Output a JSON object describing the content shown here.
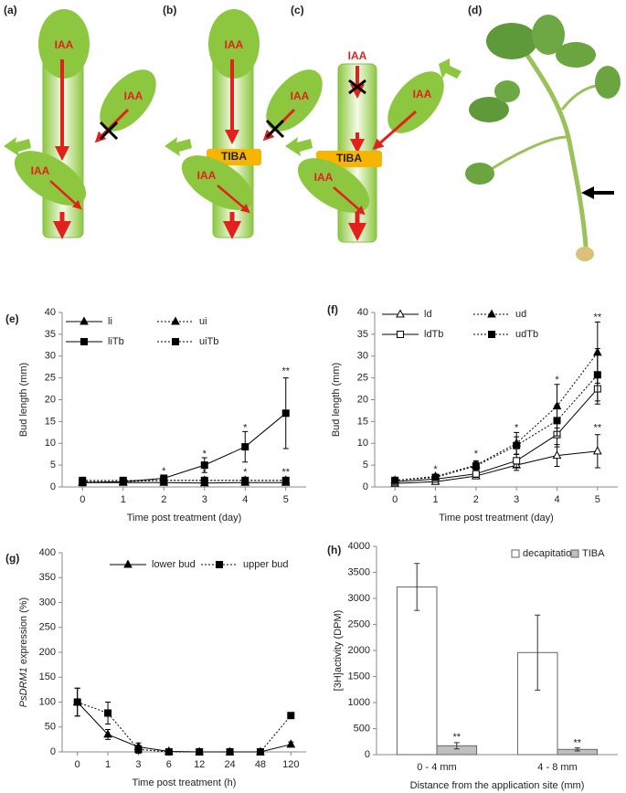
{
  "diagrams": {
    "labels": [
      "(a)",
      "(b)",
      "(c)",
      "(d)"
    ],
    "iaa": "IAA",
    "tiba": "TIBA"
  },
  "chart_data": [
    {
      "type": "line",
      "panel": "(e)",
      "ylabel": "Bud length (mm)",
      "xlabel": "Time post treatment (day)",
      "categories": [
        "0",
        "1",
        "2",
        "3",
        "4",
        "5"
      ],
      "ylim": [
        0,
        40
      ],
      "yticks": [
        0,
        5,
        10,
        15,
        20,
        25,
        30,
        35,
        40
      ],
      "series": [
        {
          "name": "li",
          "color": "#000000",
          "marker": "triangle",
          "open": false,
          "dash": "solid",
          "values": [
            1.0,
            1.0,
            1.0,
            0.9,
            1.0,
            1.0
          ]
        },
        {
          "name": "ui",
          "color": "#000000",
          "marker": "triangle",
          "open": false,
          "dash": "dotted",
          "values": [
            1.2,
            1.2,
            1.5,
            1.5,
            1.5,
            1.5
          ]
        },
        {
          "name": "liTb",
          "color": "#000000",
          "marker": "square",
          "open": false,
          "dash": "solid",
          "values": [
            1.0,
            1.2,
            2.0,
            5.0,
            9.2,
            16.9
          ],
          "errors": [
            0.3,
            0.4,
            0.6,
            1.7,
            3.5,
            8.1
          ]
        },
        {
          "name": "uiTb",
          "color": "#000000",
          "marker": "square",
          "open": false,
          "dash": "dotted",
          "values": [
            1.5,
            1.5,
            1.5,
            1.5,
            1.5,
            1.5
          ]
        }
      ],
      "annotations": [
        {
          "text": "*",
          "x": 2,
          "y": 3.5
        },
        {
          "text": "*",
          "x": 3,
          "y": 7.5
        },
        {
          "text": "*",
          "x": 4,
          "y": 13.5
        },
        {
          "text": "**",
          "x": 5,
          "y": 26.5
        },
        {
          "text": "*",
          "x": 3,
          "y": 3.3
        },
        {
          "text": "*",
          "x": 4,
          "y": 3.3
        },
        {
          "text": "**",
          "x": 5,
          "y": 3.3
        }
      ]
    },
    {
      "type": "line",
      "panel": "(f)",
      "ylabel": "Bud length (mm)",
      "xlabel": "Time post treatment (day)",
      "categories": [
        "0",
        "1",
        "2",
        "3",
        "4",
        "5"
      ],
      "ylim": [
        0,
        40
      ],
      "yticks": [
        0,
        5,
        10,
        15,
        20,
        25,
        30,
        35,
        40
      ],
      "series": [
        {
          "name": "ld",
          "color": "#000000",
          "marker": "triangle",
          "open": true,
          "dash": "solid",
          "values": [
            0.8,
            1.2,
            2.5,
            5.0,
            7.2,
            8.2
          ],
          "errors": [
            0.3,
            0.4,
            0.6,
            1.2,
            2.5,
            3.8
          ]
        },
        {
          "name": "ud",
          "color": "#000000",
          "marker": "triangle",
          "open": false,
          "dash": "dotted",
          "values": [
            1.5,
            2.4,
            5.0,
            10.0,
            18.5,
            30.8
          ],
          "errors": [
            0.5,
            0.5,
            1.0,
            2.5,
            5.0,
            7.0
          ]
        },
        {
          "name": "ldTb",
          "color": "#000000",
          "marker": "square",
          "open": true,
          "dash": "solid",
          "values": [
            1.2,
            1.8,
            3.0,
            6.0,
            12.0,
            22.5
          ],
          "errors": [
            0.4,
            0.5,
            0.8,
            1.5,
            2.8,
            3.5
          ]
        },
        {
          "name": "udTb",
          "color": "#000000",
          "marker": "square",
          "open": false,
          "dash": "dotted",
          "values": [
            1.5,
            2.2,
            4.8,
            9.5,
            15.2,
            25.7
          ],
          "errors": [
            0.5,
            0.5,
            1.0,
            2.0,
            3.5,
            6.0
          ]
        }
      ],
      "annotations": [
        {
          "text": "*",
          "x": 1,
          "y": 4.0
        },
        {
          "text": "*",
          "x": 2,
          "y": 7.5
        },
        {
          "text": "*",
          "x": 3,
          "y": 13.5
        },
        {
          "text": "*",
          "x": 4,
          "y": 24.5
        },
        {
          "text": "**",
          "x": 5,
          "y": 38.8
        },
        {
          "text": "**",
          "x": 5,
          "y": 13.5
        }
      ]
    },
    {
      "type": "line",
      "panel": "(g)",
      "ylabel_gene": "PsDRM1",
      "ylabel": " expression (%)",
      "xlabel": "Time post treatment (h)",
      "categories": [
        "0",
        "1",
        "3",
        "6",
        "12",
        "24",
        "48",
        "120"
      ],
      "ylim": [
        0,
        400
      ],
      "yticks": [
        0,
        50,
        100,
        150,
        200,
        250,
        300,
        350,
        400
      ],
      "series": [
        {
          "name": "lower bud",
          "color": "#000000",
          "marker": "triangle",
          "open": false,
          "dash": "solid",
          "values": [
            100,
            35,
            10,
            1,
            0,
            0,
            0,
            15
          ],
          "errors": [
            28,
            10,
            8,
            1,
            0,
            0,
            0,
            5
          ]
        },
        {
          "name": "upper bud",
          "color": "#000000",
          "marker": "square",
          "open": false,
          "dash": "dotted",
          "values": [
            100,
            78,
            5,
            0,
            0,
            0,
            0,
            73
          ],
          "errors": [
            28,
            22,
            8,
            1,
            0,
            0,
            0,
            5
          ]
        }
      ]
    },
    {
      "type": "bar",
      "panel": "(h)",
      "ylabel": "[3H]activity (DPM)",
      "xlabel": "Distance from the application site (mm)",
      "categories": [
        "0 - 4 mm",
        "4 - 8 mm"
      ],
      "ylim": [
        0,
        4000
      ],
      "yticks": [
        0,
        500,
        1000,
        1500,
        2000,
        2500,
        3000,
        3500,
        4000
      ],
      "series": [
        {
          "name": "decapitation",
          "color": "#ffffff",
          "values": [
            3220,
            1960
          ],
          "errors": [
            450,
            720
          ]
        },
        {
          "name": "TIBA",
          "color": "#bfbfbf",
          "values": [
            170,
            100
          ],
          "errors": [
            60,
            30
          ]
        }
      ],
      "annotations": [
        {
          "text": "**",
          "category": 0,
          "series": 1,
          "y": 330
        },
        {
          "text": "**",
          "category": 1,
          "series": 1,
          "y": 220
        }
      ]
    }
  ]
}
